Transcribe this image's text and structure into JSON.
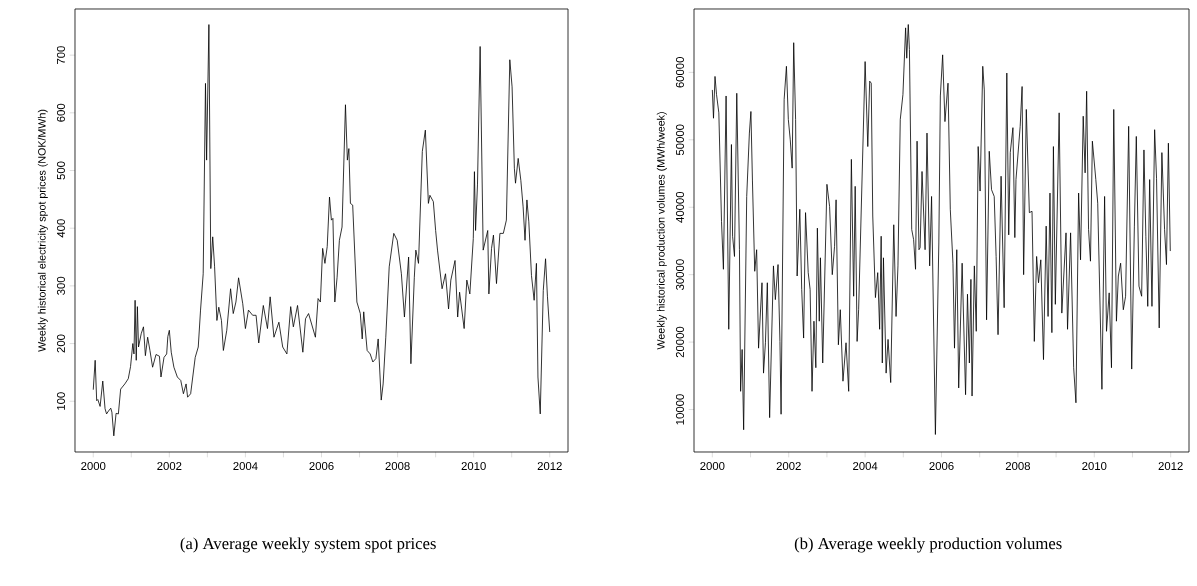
{
  "chart_data": [
    {
      "type": "line",
      "color": "#000000",
      "ylabel": "Weekly historical electricity spot prices (NOK/MWh)",
      "annotations": [
        "(a) Average weekly system spot prices"
      ],
      "xlim": [
        1999.52,
        2012.48
      ],
      "ylim": [
        12,
        780
      ],
      "xticks": [
        2000,
        {
          "value": 2001,
          "label": null
        },
        2002,
        {
          "value": 2003,
          "label": null
        },
        2004,
        {
          "value": 2005,
          "label": null
        },
        2006,
        {
          "value": 2007,
          "label": null
        },
        2008,
        {
          "value": 2009,
          "label": null
        },
        2010,
        {
          "value": 2011,
          "label": null
        },
        2012
      ],
      "yticks": [
        100,
        200,
        300,
        400,
        500,
        600,
        700
      ],
      "x": [
        2000.0,
        2000.05,
        2000.09,
        2000.12,
        2000.18,
        2000.25,
        2000.31,
        2000.35,
        2000.4,
        2000.46,
        2000.49,
        2000.54,
        2000.6,
        2000.66,
        2000.72,
        2000.83,
        2000.92,
        2000.98,
        2001.04,
        2001.07,
        2001.1,
        2001.13,
        2001.16,
        2001.19,
        2001.26,
        2001.32,
        2001.37,
        2001.43,
        2001.49,
        2001.56,
        2001.65,
        2001.74,
        2001.78,
        2001.86,
        2001.93,
        2001.96,
        2002.0,
        2002.05,
        2002.12,
        2002.21,
        2002.3,
        2002.37,
        2002.44,
        2002.48,
        2002.56,
        2002.68,
        2002.76,
        2002.82,
        2002.89,
        2002.95,
        2002.98,
        2003.04,
        2003.09,
        2003.14,
        2003.19,
        2003.25,
        2003.3,
        2003.37,
        2003.42,
        2003.51,
        2003.61,
        2003.68,
        2003.75,
        2003.82,
        2003.93,
        2004.0,
        2004.08,
        2004.19,
        2004.28,
        2004.35,
        2004.47,
        2004.58,
        2004.65,
        2004.75,
        2004.88,
        2004.98,
        2005.09,
        2005.19,
        2005.26,
        2005.37,
        2005.51,
        2005.58,
        2005.66,
        2005.84,
        2005.91,
        2005.97,
        2006.03,
        2006.09,
        2006.15,
        2006.21,
        2006.26,
        2006.3,
        2006.35,
        2006.41,
        2006.47,
        2006.54,
        2006.63,
        2006.68,
        2006.72,
        2006.76,
        2006.82,
        2006.93,
        2007.02,
        2007.07,
        2007.11,
        2007.2,
        2007.28,
        2007.35,
        2007.43,
        2007.49,
        2007.57,
        2007.62,
        2007.69,
        2007.78,
        2007.9,
        2007.99,
        2008.1,
        2008.18,
        2008.29,
        2008.35,
        2008.44,
        2008.48,
        2008.55,
        2008.65,
        2008.73,
        2008.81,
        2008.85,
        2008.94,
        2009.0,
        2009.05,
        2009.17,
        2009.26,
        2009.34,
        2009.4,
        2009.51,
        2009.58,
        2009.63,
        2009.75,
        2009.82,
        2009.9,
        2009.99,
        2010.02,
        2010.05,
        2010.1,
        2010.17,
        2010.25,
        2010.37,
        2010.4,
        2010.47,
        2010.52,
        2010.6,
        2010.69,
        2010.78,
        2010.86,
        2010.95,
        2011.01,
        2011.07,
        2011.1,
        2011.17,
        2011.24,
        2011.3,
        2011.35,
        2011.4,
        2011.45,
        2011.52,
        2011.59,
        2011.65,
        2011.69,
        2011.75,
        2011.83,
        2011.89,
        2011.94,
        2012.0
      ],
      "values": [
        120,
        171,
        101,
        103,
        91,
        135,
        87,
        78,
        83,
        88,
        81,
        40,
        79,
        78,
        121,
        130,
        139,
        160,
        200,
        182,
        275,
        171,
        264,
        194,
        217,
        229,
        179,
        211,
        188,
        159,
        181,
        178,
        142,
        176,
        182,
        212,
        223,
        185,
        159,
        142,
        136,
        113,
        130,
        107,
        113,
        176,
        194,
        258,
        321,
        651,
        518,
        753,
        330,
        385,
        333,
        240,
        263,
        240,
        188,
        223,
        295,
        252,
        272,
        314,
        269,
        226,
        258,
        249,
        249,
        201,
        266,
        226,
        281,
        211,
        237,
        194,
        182,
        264,
        229,
        266,
        185,
        243,
        252,
        211,
        278,
        272,
        365,
        339,
        368,
        454,
        414,
        417,
        272,
        315,
        379,
        402,
        614,
        518,
        538,
        443,
        440,
        272,
        252,
        208,
        255,
        188,
        182,
        168,
        174,
        208,
        102,
        130,
        211,
        333,
        391,
        379,
        321,
        246,
        350,
        165,
        315,
        362,
        339,
        533,
        570,
        443,
        457,
        446,
        396,
        362,
        295,
        321,
        260,
        310,
        344,
        246,
        289,
        226,
        310,
        286,
        382,
        498,
        396,
        475,
        715,
        362,
        396,
        286,
        365,
        388,
        304,
        391,
        391,
        414,
        692,
        645,
        504,
        478,
        521,
        483,
        437,
        379,
        449,
        411,
        318,
        275,
        339,
        142,
        78,
        292,
        347,
        281,
        220
      ]
    },
    {
      "type": "line",
      "color": "#000000",
      "ylabel": "Weekly historical production volumes (MWh/week)",
      "annotations": [
        "(b) Average weekly production volumes"
      ],
      "xlim": [
        1999.52,
        2012.48
      ],
      "ylim": [
        3700,
        69400
      ],
      "xticks": [
        2000,
        {
          "value": 2001,
          "label": null
        },
        2002,
        {
          "value": 2003,
          "label": null
        },
        2004,
        {
          "value": 2005,
          "label": null
        },
        2006,
        {
          "value": 2007,
          "label": null
        },
        2008,
        {
          "value": 2009,
          "label": null
        },
        2010,
        {
          "value": 2011,
          "label": null
        },
        2012
      ],
      "yticks": [
        10000,
        20000,
        30000,
        40000,
        50000,
        60000
      ],
      "x": [
        2000.0,
        2000.03,
        2000.07,
        2000.11,
        2000.17,
        2000.24,
        2000.29,
        2000.36,
        2000.43,
        2000.5,
        2000.53,
        2000.58,
        2000.64,
        2000.71,
        2000.74,
        2000.78,
        2000.82,
        2000.9,
        2000.97,
        2001.01,
        2001.05,
        2001.11,
        2001.16,
        2001.21,
        2001.3,
        2001.34,
        2001.39,
        2001.44,
        2001.5,
        2001.6,
        2001.65,
        2001.72,
        2001.77,
        2001.8,
        2001.88,
        2001.94,
        2001.99,
        2002.04,
        2002.09,
        2002.13,
        2002.18,
        2002.22,
        2002.29,
        2002.34,
        2002.39,
        2002.44,
        2002.51,
        2002.56,
        2002.61,
        2002.66,
        2002.71,
        2002.75,
        2002.8,
        2002.83,
        2002.89,
        2003.0,
        2003.07,
        2003.14,
        2003.2,
        2003.24,
        2003.3,
        2003.35,
        2003.42,
        2003.5,
        2003.57,
        2003.64,
        2003.7,
        2003.74,
        2003.79,
        2003.83,
        2004.0,
        2004.07,
        2004.12,
        2004.16,
        2004.2,
        2004.27,
        2004.33,
        2004.38,
        2004.42,
        2004.45,
        2004.48,
        2004.55,
        2004.6,
        2004.67,
        2004.75,
        2004.81,
        2004.86,
        2004.92,
        2004.99,
        2005.06,
        2005.09,
        2005.13,
        2005.16,
        2005.22,
        2005.27,
        2005.32,
        2005.36,
        2005.41,
        2005.44,
        2005.49,
        2005.57,
        2005.62,
        2005.69,
        2005.74,
        2005.84,
        2005.93,
        2005.97,
        2006.03,
        2006.09,
        2006.17,
        2006.23,
        2006.3,
        2006.34,
        2006.4,
        2006.45,
        2006.54,
        2006.63,
        2006.68,
        2006.73,
        2006.77,
        2006.8,
        2006.86,
        2006.91,
        2006.96,
        2007.01,
        2007.08,
        2007.12,
        2007.18,
        2007.25,
        2007.31,
        2007.38,
        2007.43,
        2007.48,
        2007.56,
        2007.64,
        2007.71,
        2007.76,
        2007.8,
        2007.87,
        2007.92,
        2007.95,
        2008.06,
        2008.11,
        2008.15,
        2008.22,
        2008.3,
        2008.37,
        2008.43,
        2008.49,
        2008.54,
        2008.6,
        2008.67,
        2008.74,
        2008.79,
        2008.84,
        2008.89,
        2008.93,
        2008.98,
        2009.08,
        2009.15,
        2009.26,
        2009.3,
        2009.38,
        2009.46,
        2009.52,
        2009.59,
        2009.64,
        2009.71,
        2009.76,
        2009.8,
        2009.85,
        2009.9,
        2009.95,
        2010.04,
        2010.09,
        2010.2,
        2010.27,
        2010.32,
        2010.39,
        2010.45,
        2010.51,
        2010.58,
        2010.63,
        2010.69,
        2010.76,
        2010.82,
        2010.9,
        2010.98,
        2011.05,
        2011.1,
        2011.17,
        2011.24,
        2011.3,
        2011.35,
        2011.4,
        2011.45,
        2011.51,
        2011.58,
        2011.63,
        2011.7,
        2011.77,
        2011.84,
        2011.89,
        2011.94,
        2011.99
      ],
      "values": [
        57400,
        53200,
        59400,
        56700,
        54000,
        37900,
        30800,
        56500,
        21900,
        49300,
        35700,
        32700,
        56900,
        33700,
        12700,
        18900,
        7000,
        41600,
        51000,
        54200,
        43900,
        30500,
        33700,
        19100,
        28800,
        15400,
        19900,
        28800,
        8800,
        31300,
        26300,
        31500,
        20100,
        9300,
        56000,
        60900,
        53000,
        50000,
        45800,
        64400,
        53000,
        29800,
        39700,
        27800,
        20600,
        39200,
        30300,
        27800,
        12700,
        23100,
        16200,
        36900,
        23100,
        32500,
        16900,
        43400,
        40100,
        30000,
        34200,
        41100,
        19600,
        24800,
        14200,
        19900,
        12700,
        47100,
        26800,
        43100,
        20100,
        24800,
        61600,
        49000,
        58700,
        58400,
        38700,
        26600,
        30300,
        21900,
        35700,
        16900,
        32500,
        15400,
        20400,
        14000,
        37400,
        23800,
        31300,
        53000,
        56700,
        66600,
        62100,
        67100,
        63400,
        36700,
        35200,
        30800,
        49800,
        33700,
        34000,
        45300,
        33700,
        51000,
        31300,
        41600,
        6300,
        34700,
        56500,
        62600,
        52700,
        58400,
        39700,
        31700,
        19100,
        33700,
        13200,
        31700,
        12200,
        27100,
        16900,
        29300,
        12000,
        31300,
        21600,
        49000,
        42400,
        60900,
        57400,
        23300,
        48300,
        42600,
        41600,
        32700,
        21100,
        44600,
        25100,
        59900,
        35900,
        48100,
        51800,
        35500,
        44100,
        52000,
        57900,
        30000,
        54500,
        39200,
        39400,
        20100,
        32700,
        28800,
        32200,
        17400,
        37200,
        23800,
        42100,
        21400,
        49000,
        25600,
        54000,
        24300,
        36200,
        21900,
        36200,
        16200,
        11000,
        42100,
        32200,
        53500,
        45100,
        57200,
        36700,
        32000,
        49800,
        44100,
        40600,
        13000,
        41600,
        21600,
        27300,
        16200,
        54500,
        23100,
        29800,
        31700,
        24800,
        26800,
        52000,
        16000,
        37200,
        50500,
        28300,
        26800,
        48500,
        35700,
        25300,
        44100,
        25300,
        51500,
        44300,
        22100,
        48100,
        36700,
        31500,
        49500,
        33500
      ]
    }
  ]
}
